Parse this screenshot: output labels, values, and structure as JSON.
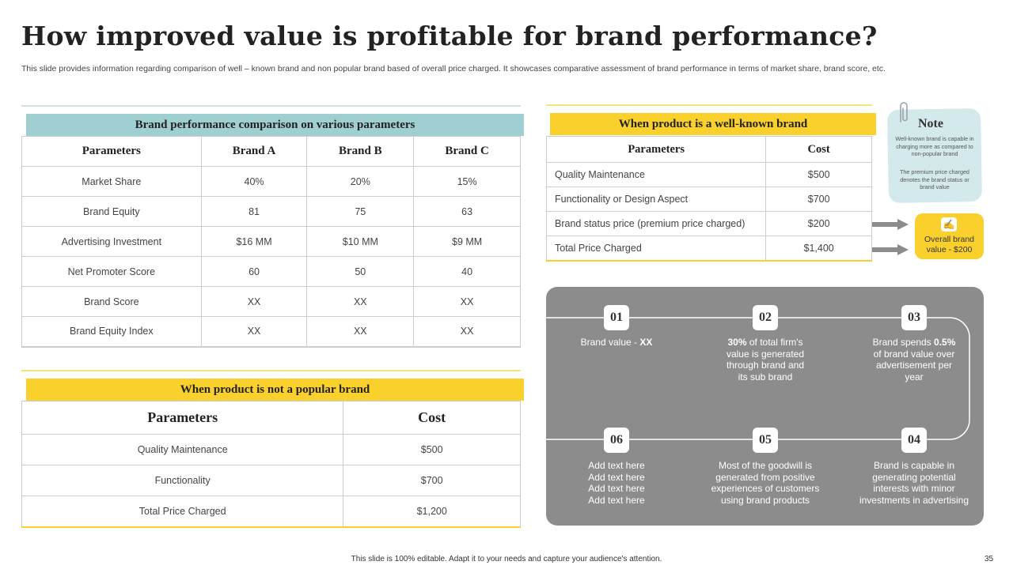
{
  "title": "How improved value is profitable for brand performance?",
  "subtitle": "This slide provides information regarding comparison of well – known brand and non popular brand based of overall price charged. It showcases comparative assessment of brand performance in terms of market share, brand score, etc.",
  "comparison": {
    "heading": "Brand performance comparison on various parameters",
    "headers": [
      "Parameters",
      "Brand A",
      "Brand B",
      "Brand C"
    ],
    "rows": [
      [
        "Market Share",
        "40%",
        "20%",
        "15%"
      ],
      [
        "Brand Equity",
        "81",
        "75",
        "63"
      ],
      [
        "Advertising Investment",
        "$16 MM",
        "$10 MM",
        "$9 MM"
      ],
      [
        "Net Promoter Score",
        "60",
        "50",
        "40"
      ],
      [
        "Brand Score",
        "XX",
        "XX",
        "XX"
      ],
      [
        "Brand Equity Index",
        "XX",
        "XX",
        "XX"
      ]
    ]
  },
  "well_known": {
    "heading": "When product is a well-known brand",
    "headers": [
      "Parameters",
      "Cost"
    ],
    "rows": [
      [
        "Quality Maintenance",
        "$500"
      ],
      [
        "Functionality or Design Aspect",
        "$700"
      ],
      [
        "Brand status price (premium price charged)",
        "$200"
      ],
      [
        "Total Price Charged",
        "$1,400"
      ]
    ]
  },
  "not_popular": {
    "heading": "When product is not a popular brand",
    "headers": [
      "Parameters",
      "Cost"
    ],
    "rows": [
      [
        "Quality Maintenance",
        "$500"
      ],
      [
        "Functionality",
        "$700"
      ],
      [
        "Total Price Charged",
        "$1,200"
      ]
    ]
  },
  "note": {
    "title": "Note",
    "text1": "Well-known brand is capable in charging more as compared to non-popular brand",
    "text2": "The premium price charged denotes the brand status or brand value"
  },
  "overall_badge": {
    "text": "Overall brand value - $200",
    "icon": "hand-coin-icon"
  },
  "steps": [
    {
      "num": "01",
      "pre": "Brand value - ",
      "bold": "XX",
      "post": ""
    },
    {
      "num": "02",
      "pre": "",
      "bold": "30%",
      "post": " of total firm's value is generated through brand and its sub brand"
    },
    {
      "num": "03",
      "pre": "Brand spends ",
      "bold": "0.5%",
      "post": " of brand value over advertisement per year"
    },
    {
      "num": "04",
      "pre": "Brand is capable in generating potential interests with minor investments in advertising",
      "bold": "",
      "post": ""
    },
    {
      "num": "05",
      "pre": "Most of the goodwill is generated from positive experiences of customers using brand products",
      "bold": "",
      "post": ""
    },
    {
      "num": "06",
      "pre": "Add text here Add text here Add text here Add text here",
      "bold": "",
      "post": ""
    }
  ],
  "footer": "This slide is 100% editable. Adapt it to your needs and capture your audience's attention.",
  "page_number": "35",
  "colors": {
    "yellow": "#f9d02c",
    "teal": "#9fcfd0",
    "grey_panel": "#8c8c8c"
  }
}
